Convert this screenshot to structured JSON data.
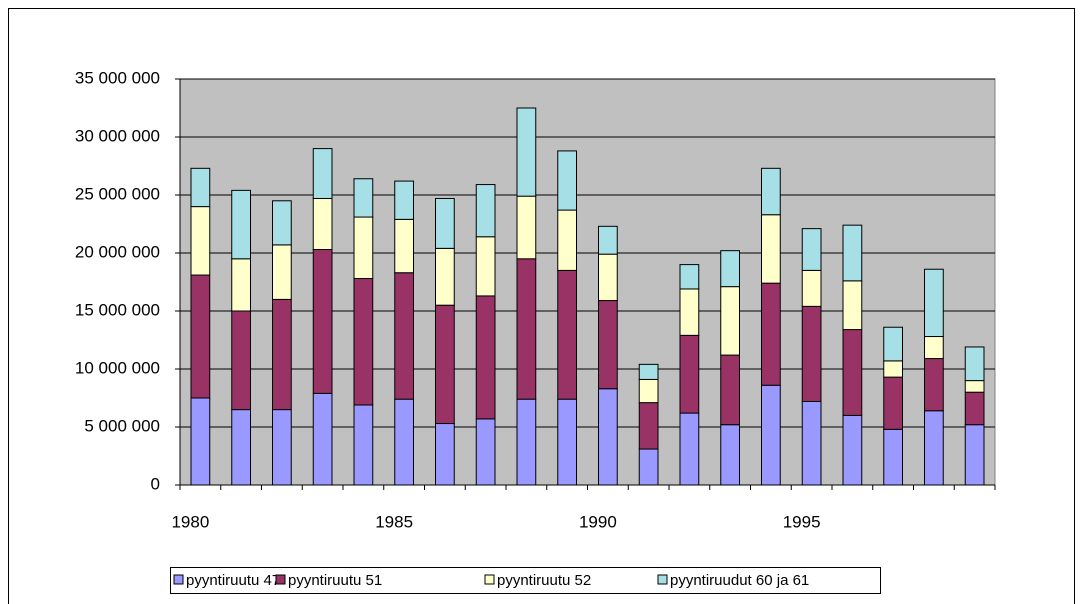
{
  "chart_data": {
    "type": "bar",
    "stacked": true,
    "categories": [
      "1980",
      null,
      null,
      null,
      null,
      "1985",
      null,
      null,
      null,
      null,
      "1990",
      null,
      null,
      null,
      null,
      "1995",
      null,
      null,
      null,
      null
    ],
    "series": [
      {
        "name": "pyyntiruutu 47",
        "color": "#9999ff",
        "values": [
          7500000,
          6500000,
          6500000,
          7900000,
          6900000,
          7400000,
          5300000,
          5700000,
          7400000,
          7400000,
          8300000,
          3100000,
          6200000,
          5200000,
          8600000,
          7200000,
          6000000,
          4800000,
          6400000,
          5200000
        ]
      },
      {
        "name": "pyyntiruutu 51",
        "color": "#993366",
        "values": [
          10600000,
          8500000,
          9500000,
          12400000,
          10900000,
          10900000,
          10200000,
          10600000,
          12100000,
          11100000,
          7600000,
          4000000,
          6700000,
          6000000,
          8800000,
          8200000,
          7400000,
          4500000,
          4500000,
          2800000
        ]
      },
      {
        "name": "pyyntiruutu 52",
        "color": "#ffffcc",
        "values": [
          5900000,
          4500000,
          4700000,
          4400000,
          5300000,
          4600000,
          4900000,
          5100000,
          5400000,
          5200000,
          4000000,
          2000000,
          4000000,
          5900000,
          5900000,
          3100000,
          4200000,
          1400000,
          1900000,
          1000000
        ]
      },
      {
        "name": "pyyntiruudut 60 ja 61",
        "color": "#a6e0e6",
        "values": [
          3300000,
          5900000,
          3800000,
          4300000,
          3300000,
          3300000,
          4300000,
          4500000,
          7600000,
          5100000,
          2400000,
          1300000,
          2100000,
          3100000,
          4000000,
          3600000,
          4800000,
          2900000,
          5800000,
          2900000
        ]
      }
    ],
    "ylim": [
      0,
      35000000
    ],
    "yticks": [
      0,
      {
        "value": 5000000,
        "label": "5 000 000"
      },
      {
        "value": 10000000,
        "label": "10 000 000"
      },
      {
        "value": 15000000,
        "label": "15 000 000"
      },
      {
        "value": 20000000,
        "label": "20 000 000"
      },
      {
        "value": 25000000,
        "label": "25 000 000"
      },
      {
        "value": 30000000,
        "label": "30 000 000"
      },
      {
        "value": 35000000,
        "label": "35 000 000"
      }
    ],
    "grid": true,
    "background": "#c0c0c0",
    "legend": "bottom"
  }
}
